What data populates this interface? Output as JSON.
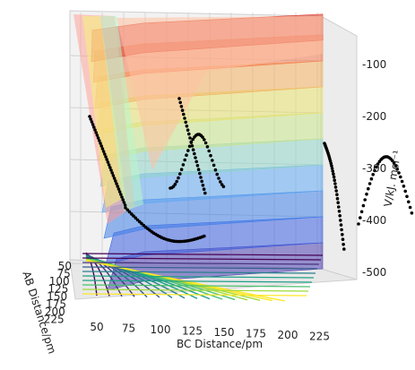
{
  "chart_data": {
    "type": "surface",
    "title": "",
    "xlabel": "BC Distance/pm",
    "ylabel": "AB Distance/pm",
    "zlabel": "V/kJ. mol⁻¹",
    "x_ticks": [
      "50",
      "75",
      "100",
      "125",
      "150",
      "175",
      "200",
      "225"
    ],
    "y_ticks": [
      "50",
      "75",
      "100",
      "125",
      "150",
      "175",
      "200",
      "225"
    ],
    "z_ticks": [
      "-100",
      "-200",
      "-300",
      "-400",
      "-500"
    ],
    "xlim": [
      30,
      240
    ],
    "ylim": [
      30,
      240
    ],
    "zlim": [
      -550,
      -50
    ],
    "grid": true,
    "surface_bands": [
      {
        "level": -500,
        "color": "#4b3fb0"
      },
      {
        "level": -450,
        "color": "#3a5fe0"
      },
      {
        "level": -400,
        "color": "#3f7fe8"
      },
      {
        "level": -350,
        "color": "#60a8f0"
      },
      {
        "level": -300,
        "color": "#8fd4c8"
      },
      {
        "level": -250,
        "color": "#c8e48a"
      },
      {
        "level": -200,
        "color": "#e8e070"
      },
      {
        "level": -150,
        "color": "#f3b060"
      },
      {
        "level": -100,
        "color": "#f47a50"
      },
      {
        "level": -60,
        "color": "#e04030"
      }
    ],
    "contour_colormap": "viridis",
    "trajectory_color": "#000000"
  }
}
